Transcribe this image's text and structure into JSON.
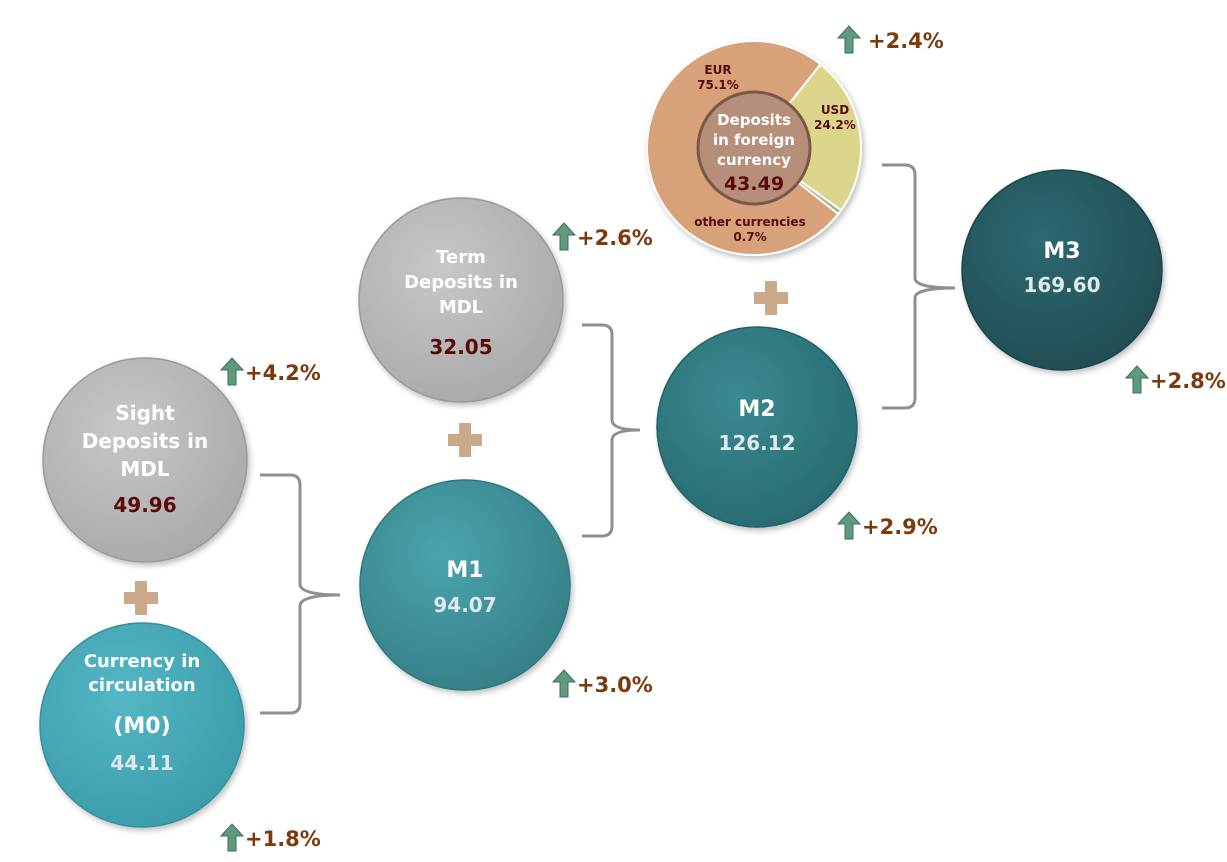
{
  "nodes": {
    "m0": {
      "label_lines": [
        "Currency in",
        "circulation"
      ],
      "code": "(M0)",
      "value": "44.11",
      "change": "+1.8%"
    },
    "sight": {
      "label_lines": [
        "Sight",
        "Deposits in",
        "MDL"
      ],
      "value": "49.96",
      "change": "+4.2%"
    },
    "m1": {
      "label": "M1",
      "value": "94.07",
      "change": "+3.0%"
    },
    "term": {
      "label_lines": [
        "Term",
        "Deposits in",
        "MDL"
      ],
      "value": "32.05",
      "change": "+2.6%"
    },
    "m2": {
      "label": "M2",
      "value": "126.12",
      "change": "+2.9%"
    },
    "foreign": {
      "label_lines": [
        "Deposits",
        "in foreign",
        "currency"
      ],
      "value": "43.49",
      "change": "+2.4%",
      "breakdown": [
        {
          "name": "EUR",
          "pct": "75.1%",
          "share": 75.1
        },
        {
          "name": "USD",
          "pct": "24.2%",
          "share": 24.2
        },
        {
          "name": "other currencies",
          "pct": "0.7%",
          "share": 0.7
        }
      ]
    },
    "m3": {
      "label": "M3",
      "value": "169.60",
      "change": "+2.8%"
    }
  },
  "colors": {
    "gray": "#b4b4b4",
    "m0": "#47a9b8",
    "m1": "#3f979f",
    "m2": "#2f7c82",
    "m3": "#265a62",
    "eur": "#d7a27a",
    "usd": "#dcd58c",
    "other": "#a3b08c",
    "dark_value": "#5a0a0a",
    "light_value": "#dde8f0",
    "plus": "#c9a98a",
    "arrow": "#5e9a7c",
    "bracket": "#8f8f8f"
  },
  "icons": {
    "plus": "plus-icon",
    "arrow": "arrow-up-icon"
  }
}
